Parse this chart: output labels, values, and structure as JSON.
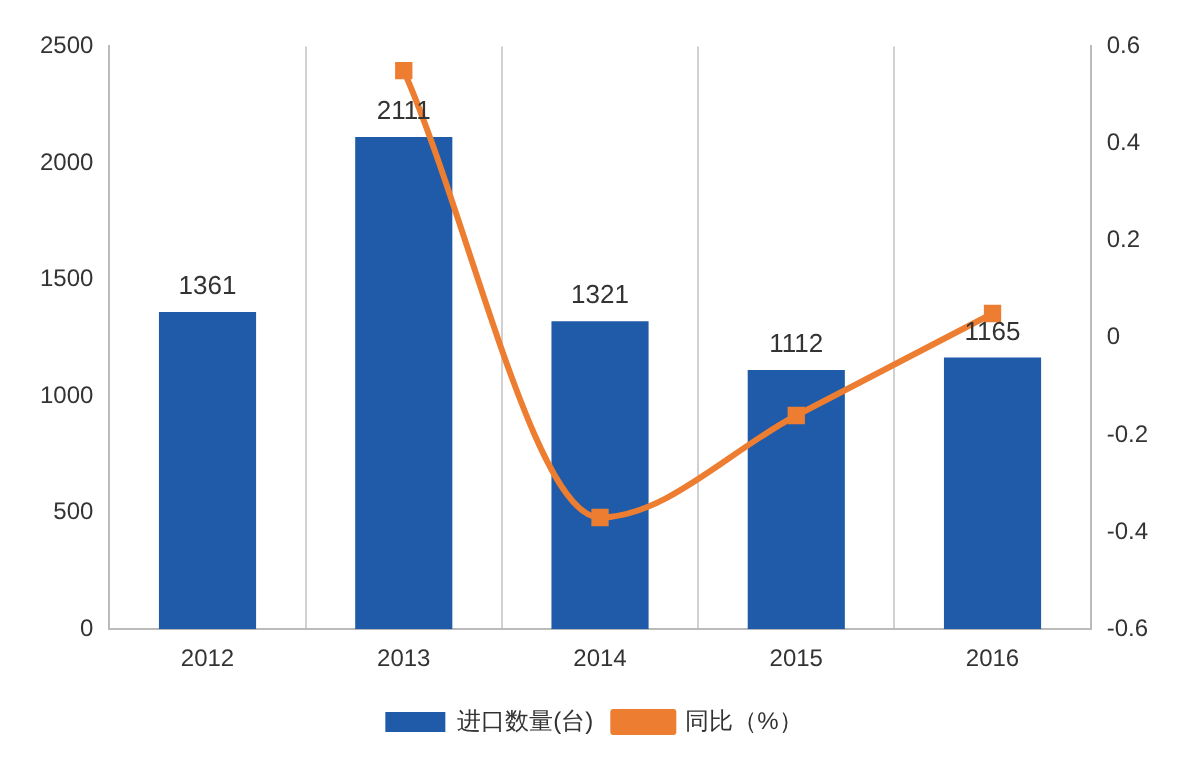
{
  "chart_data": {
    "type": "bar",
    "categories": [
      "2012",
      "2013",
      "2014",
      "2015",
      "2016"
    ],
    "series": [
      {
        "name": "进口数量(台)",
        "color": "#1f5ba8",
        "values": [
          1361,
          2111,
          1321,
          1112,
          1165
        ],
        "value_labels": [
          "1361",
          "2111",
          "1321",
          "1112",
          "1165"
        ]
      },
      {
        "name": "同比（%）",
        "type": "line",
        "axis": "y2",
        "color": "#ed7d31",
        "values": [
          null,
          0.55,
          -0.37,
          -0.16,
          0.05
        ],
        "marker": "square"
      }
    ],
    "ylim": [
      0,
      2500
    ],
    "yticks": [
      0,
      500,
      1000,
      1500,
      2000,
      2500
    ],
    "y2lim": [
      -0.6,
      0.6
    ],
    "y2ticks": [
      -0.6,
      -0.4,
      -0.2,
      0,
      0.2,
      0.4,
      0.6
    ],
    "grid": "x",
    "legend": "bottom"
  }
}
